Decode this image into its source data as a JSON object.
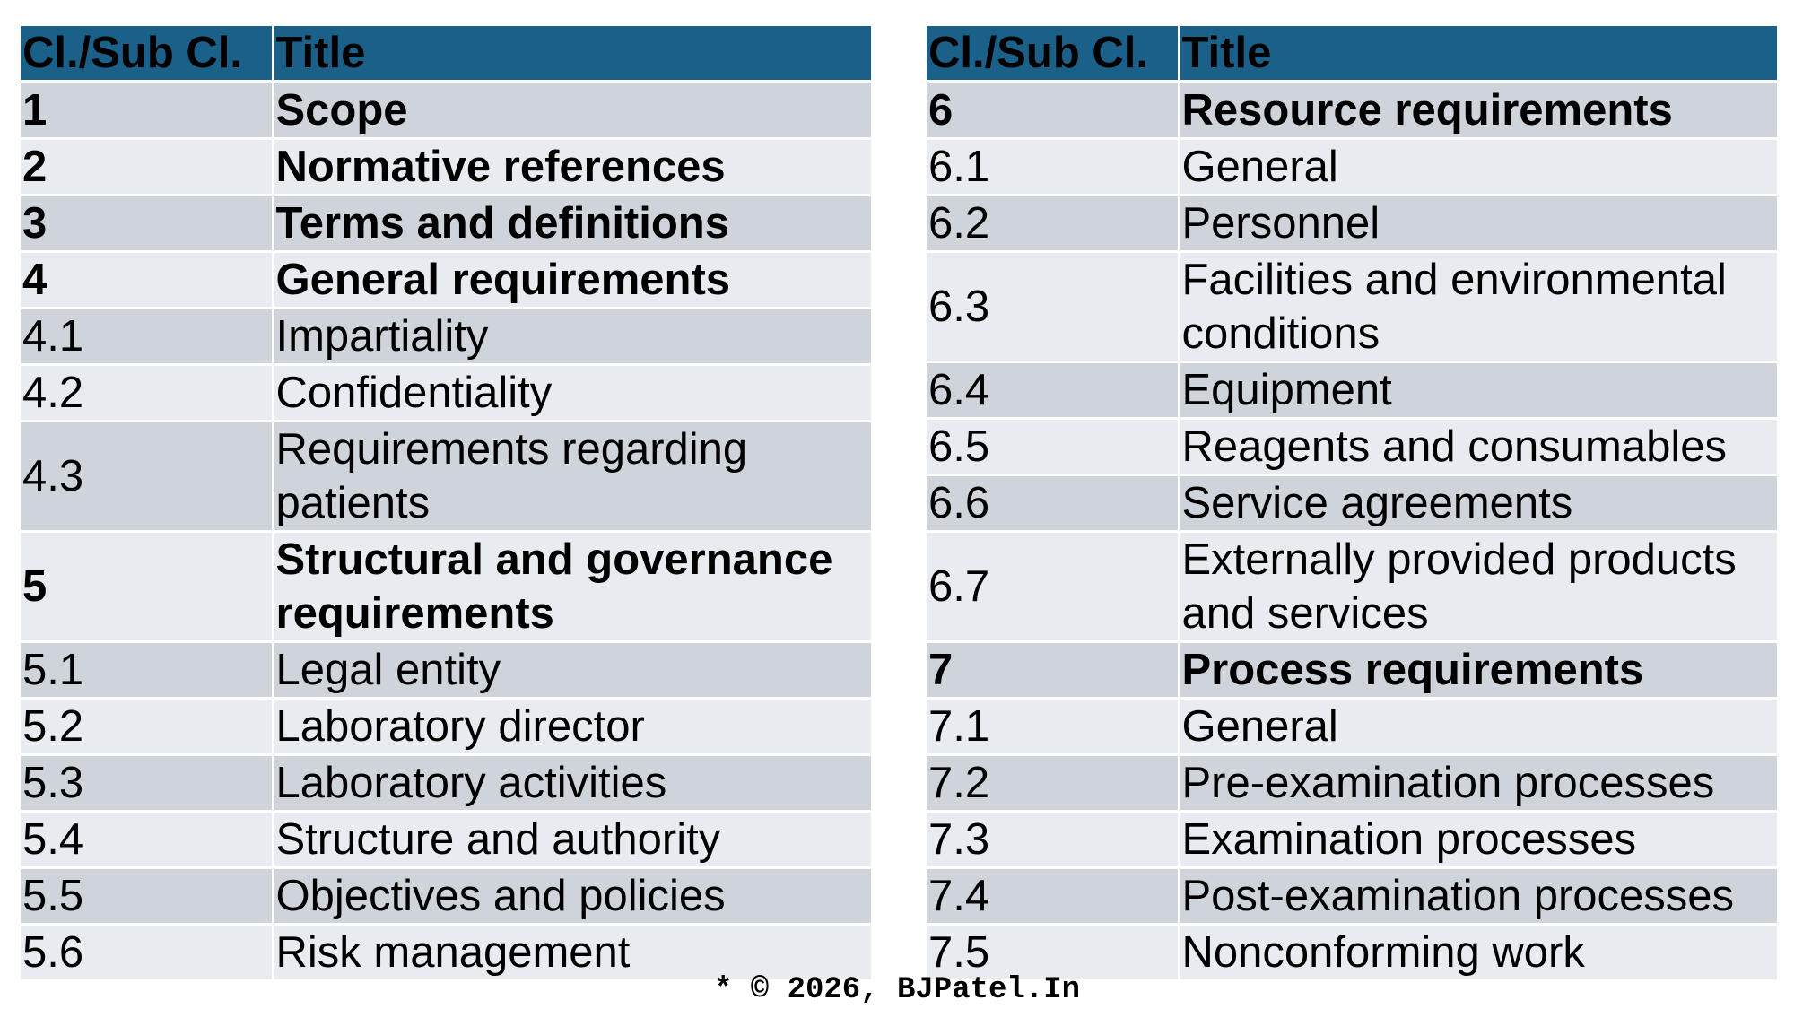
{
  "header": {
    "col1": "Cl./Sub Cl.",
    "col2": "Title"
  },
  "left_rows": [
    {
      "clause": "1",
      "title": "Scope",
      "bold": true
    },
    {
      "clause": "2",
      "title": "Normative references",
      "bold": true
    },
    {
      "clause": "3",
      "title": "Terms and definitions",
      "bold": true
    },
    {
      "clause": "4",
      "title": "General requirements",
      "bold": true
    },
    {
      "clause": "4.1",
      "title": "Impartiality",
      "bold": false
    },
    {
      "clause": "4.2",
      "title": "Confidentiality",
      "bold": false
    },
    {
      "clause": "4.3",
      "title": "Requirements regarding patients",
      "bold": false
    },
    {
      "clause": "5",
      "title": "Structural and governance requirements",
      "bold": true
    },
    {
      "clause": "5.1",
      "title": "Legal entity",
      "bold": false
    },
    {
      "clause": "5.2",
      "title": "Laboratory director",
      "bold": false
    },
    {
      "clause": "5.3",
      "title": "Laboratory activities",
      "bold": false
    },
    {
      "clause": "5.4",
      "title": "Structure and authority",
      "bold": false
    },
    {
      "clause": "5.5",
      "title": "Objectives and policies",
      "bold": false
    },
    {
      "clause": "5.6",
      "title": "Risk management",
      "bold": false
    }
  ],
  "right_rows": [
    {
      "clause": "6",
      "title": "Resource requirements",
      "bold": true
    },
    {
      "clause": "6.1",
      "title": "General",
      "bold": false
    },
    {
      "clause": "6.2",
      "title": "Personnel",
      "bold": false
    },
    {
      "clause": "6.3",
      "title": "Facilities and environmental conditions",
      "bold": false
    },
    {
      "clause": "6.4",
      "title": "Equipment",
      "bold": false
    },
    {
      "clause": "6.5",
      "title": "Reagents and consumables",
      "bold": false
    },
    {
      "clause": "6.6",
      "title": "Service agreements",
      "bold": false
    },
    {
      "clause": "6.7",
      "title": "Externally provided products and services",
      "bold": false
    },
    {
      "clause": "7",
      "title": "Process requirements",
      "bold": true
    },
    {
      "clause": "7.1",
      "title": "General",
      "bold": false
    },
    {
      "clause": "7.2",
      "title": "Pre-examination processes",
      "bold": false
    },
    {
      "clause": "7.3",
      "title": "Examination processes",
      "bold": false
    },
    {
      "clause": "7.4",
      "title": "Post-examination processes",
      "bold": false
    },
    {
      "clause": "7.5",
      "title": "Nonconforming work",
      "bold": false
    }
  ],
  "colors": {
    "header_bg": "#1a6089",
    "row_dark": "#cfd4db",
    "row_light": "#e8ebef"
  },
  "footer": {
    "copyright": "* © 2026, BJPatel.In"
  }
}
